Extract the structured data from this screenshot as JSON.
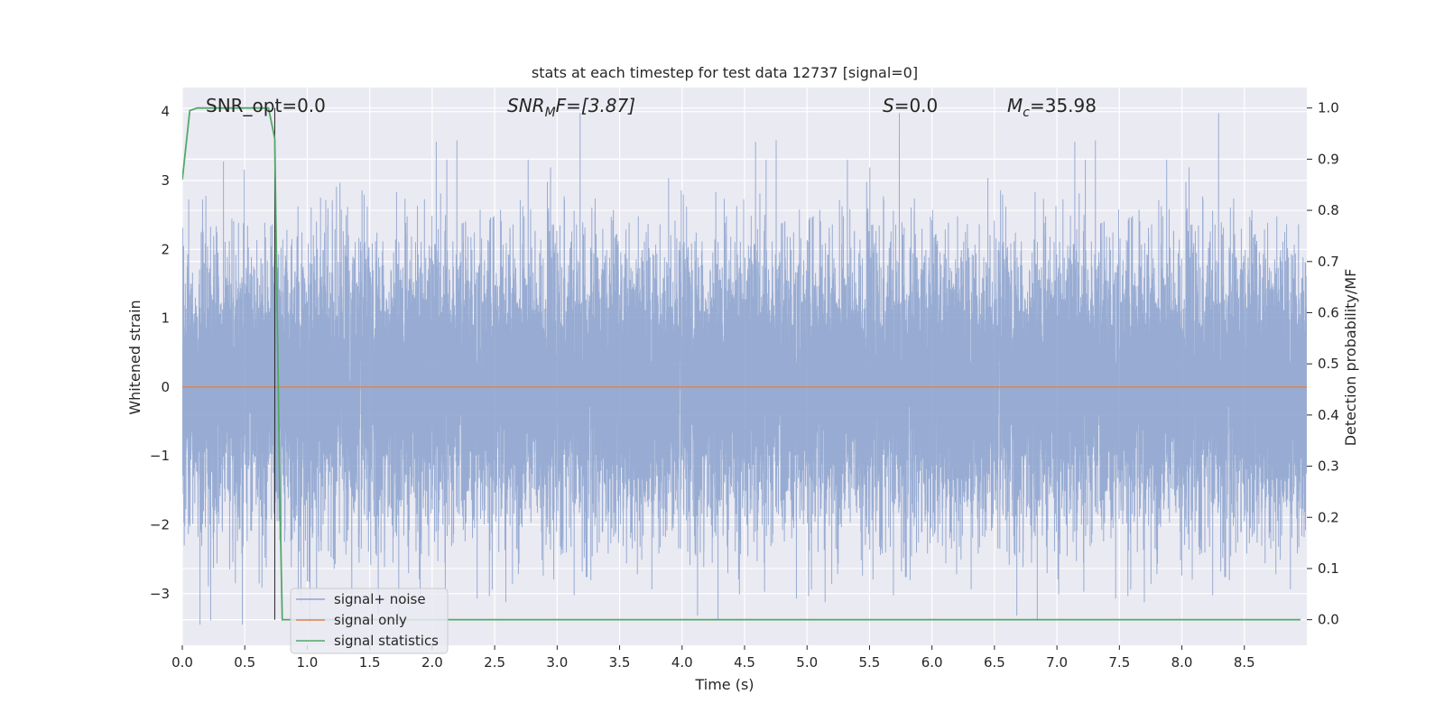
{
  "chart_data": {
    "type": "line",
    "title": "stats at each timestep for test data 12737 [signal=0]",
    "xlabel": "Time (s)",
    "ylabel": "Whitened strain",
    "y2label": "Detection probability/MF",
    "xlim": [
      0.0,
      9.0
    ],
    "ylim": [
      -3.75,
      4.35
    ],
    "y2lim": [
      -0.05,
      1.04
    ],
    "x_ticks": [
      0.0,
      0.5,
      1.0,
      1.5,
      2.0,
      2.5,
      3.0,
      3.5,
      4.0,
      4.5,
      5.0,
      5.5,
      6.0,
      6.5,
      7.0,
      7.5,
      8.0,
      8.5
    ],
    "x_tick_labels": [
      "0.0",
      "0.5",
      "1.0",
      "1.5",
      "2.0",
      "2.5",
      "3.0",
      "3.5",
      "4.0",
      "4.5",
      "5.0",
      "5.5",
      "6.0",
      "6.5",
      "7.0",
      "7.5",
      "8.0",
      "8.5"
    ],
    "y_ticks": [
      -3,
      -2,
      -1,
      0,
      1,
      2,
      3,
      4
    ],
    "y_tick_labels": [
      "−3",
      "−2",
      "−1",
      "0",
      "1",
      "2",
      "3",
      "4"
    ],
    "y2_ticks": [
      0.0,
      0.1,
      0.2,
      0.3,
      0.4,
      0.5,
      0.6,
      0.7,
      0.8,
      0.9,
      1.0
    ],
    "y2_tick_labels": [
      "0.0",
      "0.1",
      "0.2",
      "0.3",
      "0.4",
      "0.5",
      "0.6",
      "0.7",
      "0.8",
      "0.9",
      "1.0"
    ],
    "grid": true,
    "legend_position": "lower-left",
    "annotations": {
      "snr_opt": "SNR_opt=0.0",
      "snr_mf_base": "SNR",
      "snr_mf_sub": "M",
      "snr_mf_rest": "F=[3.87]",
      "s_stat_italic": "S",
      "s_stat_rest": "=0.0",
      "mc_base": "M",
      "mc_sub": "c",
      "mc_rest": "=35.98"
    },
    "vertical_marker_x": 0.74,
    "series": [
      {
        "name": "signal+ noise",
        "color": "#8fa5cf",
        "axis": "left",
        "noise": {
          "sample_rate": 2048,
          "std": 1.0,
          "min": -3.45,
          "max": 3.98,
          "mean": 0.0
        }
      },
      {
        "name": "signal only",
        "color": "#dd8452",
        "axis": "left",
        "x": [
          0.0,
          9.0
        ],
        "y": [
          0.0,
          0.0
        ]
      },
      {
        "name": "signal statistics",
        "color": "#55a868",
        "axis": "right",
        "x": [
          0.0,
          0.06,
          0.12,
          0.25,
          0.4,
          0.55,
          0.69,
          0.74,
          0.78,
          0.8,
          1.0,
          2.0,
          3.0,
          4.0,
          5.0,
          6.0,
          7.0,
          8.0,
          8.95
        ],
        "y": [
          0.86,
          0.995,
          1.0,
          1.0,
          1.0,
          1.0,
          1.0,
          0.94,
          0.25,
          0.0,
          0.0,
          0.0,
          0.0,
          0.0,
          0.0,
          0.0,
          0.0,
          0.0,
          0.0
        ]
      }
    ]
  }
}
